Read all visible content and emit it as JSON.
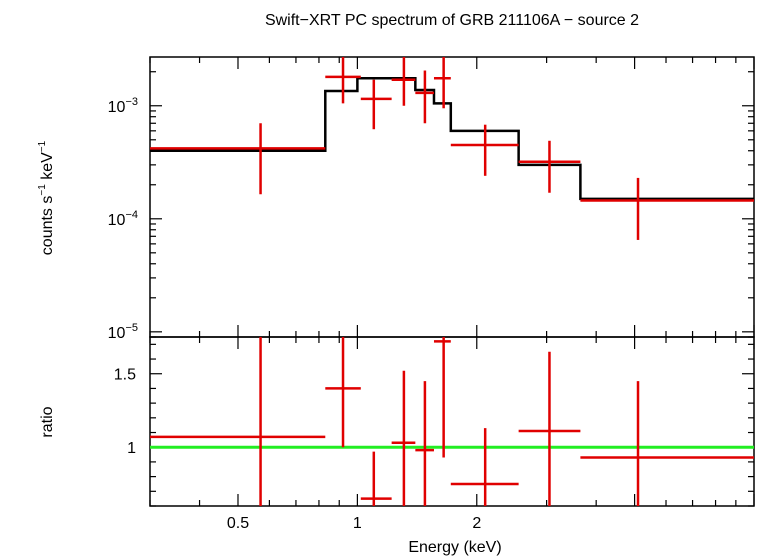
{
  "chart_data": [
    {
      "type": "line",
      "panel": "spectrum",
      "title": "Swift−XRT PC spectrum of GRB 211106A − source 2",
      "xlabel": "",
      "ylabel_main": "counts s",
      "ylabel_sup1": "−1",
      "ylabel_mid": " keV",
      "ylabel_sup2": "−1",
      "xscale": "log",
      "yscale": "log",
      "xlim": [
        0.3,
        10.0
      ],
      "ylim": [
        9e-06,
        0.0027
      ],
      "y_ticks": [
        {
          "value": 1e-05,
          "base": "10",
          "exp": "−5"
        },
        {
          "value": 0.0001,
          "base": "10",
          "exp": "−4"
        },
        {
          "value": 0.001,
          "base": "10",
          "exp": "−3"
        }
      ],
      "series": [
        {
          "name": "data",
          "color": "#e00000",
          "points": [
            {
              "x": 0.57,
              "xlo": 0.3,
              "xhi": 0.83,
              "y": 0.00042,
              "ylo": 0.000165,
              "yhi": 0.0007
            },
            {
              "x": 0.92,
              "xlo": 0.83,
              "xhi": 1.02,
              "y": 0.0018,
              "ylo": 0.00105,
              "yhi": 0.0027
            },
            {
              "x": 1.1,
              "xlo": 1.02,
              "xhi": 1.22,
              "y": 0.00115,
              "ylo": 0.00062,
              "yhi": 0.0017
            },
            {
              "x": 1.31,
              "xlo": 1.22,
              "xhi": 1.4,
              "y": 0.0017,
              "ylo": 0.001,
              "yhi": 0.0027
            },
            {
              "x": 1.48,
              "xlo": 1.4,
              "xhi": 1.56,
              "y": 0.0013,
              "ylo": 0.0007,
              "yhi": 0.00205
            },
            {
              "x": 1.65,
              "xlo": 1.56,
              "xhi": 1.72,
              "y": 0.00175,
              "ylo": 0.00095,
              "yhi": 0.0027
            },
            {
              "x": 2.1,
              "xlo": 1.72,
              "xhi": 2.55,
              "y": 0.00045,
              "ylo": 0.00024,
              "yhi": 0.00068
            },
            {
              "x": 3.05,
              "xlo": 2.55,
              "xhi": 3.65,
              "y": 0.00032,
              "ylo": 0.00017,
              "yhi": 0.00049
            },
            {
              "x": 5.1,
              "xlo": 3.65,
              "xhi": 10.0,
              "y": 0.000145,
              "ylo": 6.5e-05,
              "yhi": 0.00023
            }
          ]
        },
        {
          "name": "model",
          "color": "#000000",
          "steps": [
            {
              "xlo": 0.3,
              "xhi": 0.83,
              "y": 0.0004
            },
            {
              "xlo": 0.83,
              "xhi": 1.0,
              "y": 0.00135
            },
            {
              "xlo": 1.0,
              "xhi": 1.4,
              "y": 0.00175
            },
            {
              "xlo": 1.4,
              "xhi": 1.56,
              "y": 0.00138
            },
            {
              "xlo": 1.56,
              "xhi": 1.72,
              "y": 0.00105
            },
            {
              "xlo": 1.72,
              "xhi": 2.55,
              "y": 0.0006
            },
            {
              "xlo": 2.55,
              "xhi": 3.65,
              "y": 0.0003
            },
            {
              "xlo": 3.65,
              "xhi": 10.0,
              "y": 0.00015
            }
          ]
        }
      ]
    },
    {
      "type": "line",
      "panel": "ratio",
      "xlabel": "Energy (keV)",
      "ylabel": "ratio",
      "xscale": "log",
      "yscale": "linear",
      "xlim": [
        0.3,
        10.0
      ],
      "ylim": [
        0.6,
        1.75
      ],
      "x_ticks": [
        {
          "value": 0.5,
          "label": "0.5"
        },
        {
          "value": 1,
          "label": "1"
        },
        {
          "value": 2,
          "label": "2"
        }
      ],
      "y_ticks": [
        {
          "value": 1,
          "label": "1"
        },
        {
          "value": 1.5,
          "label": "1.5"
        }
      ],
      "reference_line": {
        "y": 1,
        "color": "#22ee22"
      },
      "series": [
        {
          "name": "ratio",
          "color": "#e00000",
          "points": [
            {
              "x": 0.57,
              "xlo": 0.3,
              "xhi": 0.83,
              "y": 1.07,
              "ylo": 0.6,
              "yhi": 1.75
            },
            {
              "x": 0.92,
              "xlo": 0.83,
              "xhi": 1.02,
              "y": 1.4,
              "ylo": 1.0,
              "yhi": 1.75
            },
            {
              "x": 1.1,
              "xlo": 1.02,
              "xhi": 1.22,
              "y": 0.65,
              "ylo": 0.6,
              "yhi": 0.97
            },
            {
              "x": 1.31,
              "xlo": 1.22,
              "xhi": 1.4,
              "y": 1.03,
              "ylo": 0.6,
              "yhi": 1.52
            },
            {
              "x": 1.48,
              "xlo": 1.4,
              "xhi": 1.56,
              "y": 0.98,
              "ylo": 0.6,
              "yhi": 1.45
            },
            {
              "x": 1.65,
              "xlo": 1.56,
              "xhi": 1.72,
              "y": 1.72,
              "ylo": 0.93,
              "yhi": 1.75
            },
            {
              "x": 2.1,
              "xlo": 1.72,
              "xhi": 2.55,
              "y": 0.75,
              "ylo": 0.6,
              "yhi": 1.13
            },
            {
              "x": 3.05,
              "xlo": 2.55,
              "xhi": 3.65,
              "y": 1.11,
              "ylo": 0.6,
              "yhi": 1.65
            },
            {
              "x": 5.1,
              "xlo": 3.65,
              "xhi": 10.0,
              "y": 0.93,
              "ylo": 0.6,
              "yhi": 1.45
            }
          ]
        }
      ]
    }
  ]
}
